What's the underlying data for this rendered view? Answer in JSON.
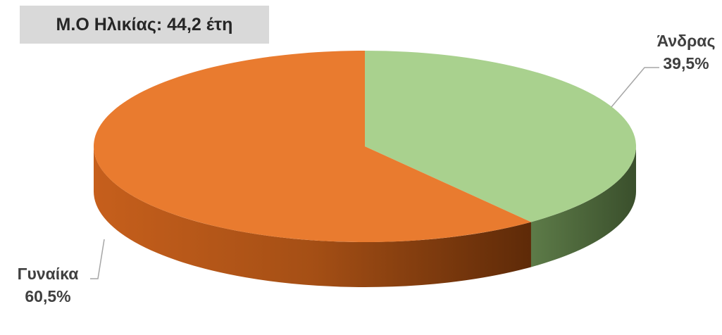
{
  "chart_data": {
    "type": "pie",
    "style": "3d",
    "annotation": "Μ.Ο Ηλικίας: 44,2 έτη",
    "slices": [
      {
        "label": "Άνδρας",
        "value": 39.5,
        "value_text": "39,5%",
        "color": "#a9d18e",
        "side_color": "#4f6a3d"
      },
      {
        "label": "Γυναίκα",
        "value": 60.5,
        "value_text": "60,5%",
        "color": "#e97b2f",
        "side_color": "#7a3a10"
      }
    ],
    "start_angle": "top",
    "direction": "clockwise"
  }
}
